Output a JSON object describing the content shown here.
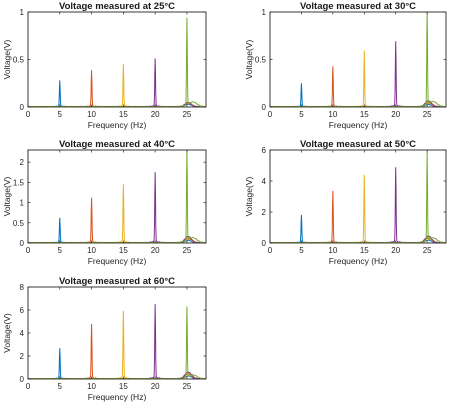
{
  "chart_data": [
    {
      "type": "line",
      "title": "Voltage measured at 25°C",
      "xlabel": "Frequency (Hz)",
      "ylabel": "Voltage(V)",
      "xlim": [
        0,
        28
      ],
      "ylim": [
        0,
        1
      ],
      "xticks": [
        "0",
        "5",
        "10",
        "15",
        "20",
        "25"
      ],
      "yticks": [
        "0",
        "0.5",
        "1"
      ],
      "series": [
        {
          "peak_hz": 5,
          "peak_v": 0.27,
          "color": "#0072BD"
        },
        {
          "peak_hz": 10,
          "peak_v": 0.38,
          "color": "#D95319"
        },
        {
          "peak_hz": 15,
          "peak_v": 0.44,
          "color": "#EDB120"
        },
        {
          "peak_hz": 20,
          "peak_v": 0.5,
          "color": "#7E2F8E"
        },
        {
          "peak_hz": 25,
          "peak_v": 0.91,
          "color": "#77AC30"
        }
      ]
    },
    {
      "type": "line",
      "title": "Voltage measured at 30°C",
      "xlabel": "Frequency (Hz)",
      "ylabel": "Voltage(V)",
      "xlim": [
        0,
        28
      ],
      "ylim": [
        0,
        1
      ],
      "xticks": [
        "0",
        "5",
        "10",
        "15",
        "20",
        "25"
      ],
      "yticks": [
        "0",
        "0.5",
        "1"
      ],
      "series": [
        {
          "peak_hz": 5,
          "peak_v": 0.24,
          "color": "#0072BD"
        },
        {
          "peak_hz": 10,
          "peak_v": 0.42,
          "color": "#D95319"
        },
        {
          "peak_hz": 15,
          "peak_v": 0.58,
          "color": "#EDB120"
        },
        {
          "peak_hz": 20,
          "peak_v": 0.68,
          "color": "#7E2F8E"
        },
        {
          "peak_hz": 25,
          "peak_v": 1.0,
          "color": "#77AC30"
        }
      ]
    },
    {
      "type": "line",
      "title": "Voltage measured at 40°C",
      "xlabel": "Frequency (Hz)",
      "ylabel": "Voltage(V)",
      "xlim": [
        0,
        28
      ],
      "ylim": [
        0,
        2.3
      ],
      "xticks": [
        "0",
        "5",
        "10",
        "15",
        "20",
        "25"
      ],
      "yticks": [
        "0",
        "0.5",
        "1",
        "1.5",
        "2"
      ],
      "series": [
        {
          "peak_hz": 5,
          "peak_v": 0.6,
          "color": "#0072BD"
        },
        {
          "peak_hz": 10,
          "peak_v": 1.1,
          "color": "#D95319"
        },
        {
          "peak_hz": 15,
          "peak_v": 1.42,
          "color": "#EDB120"
        },
        {
          "peak_hz": 20,
          "peak_v": 1.72,
          "color": "#7E2F8E"
        },
        {
          "peak_hz": 25,
          "peak_v": 2.3,
          "color": "#77AC30"
        }
      ]
    },
    {
      "type": "line",
      "title": "Voltage measured at 50°C",
      "xlabel": "Frequency (Hz)",
      "ylabel": "Voltage(V)",
      "xlim": [
        0,
        28
      ],
      "ylim": [
        0,
        6
      ],
      "xticks": [
        "0",
        "5",
        "10",
        "15",
        "20",
        "25"
      ],
      "yticks": [
        "0",
        "2",
        "4",
        "6"
      ],
      "series": [
        {
          "peak_hz": 5,
          "peak_v": 1.75,
          "color": "#0072BD"
        },
        {
          "peak_hz": 10,
          "peak_v": 3.3,
          "color": "#D95319"
        },
        {
          "peak_hz": 15,
          "peak_v": 4.3,
          "color": "#EDB120"
        },
        {
          "peak_hz": 20,
          "peak_v": 4.8,
          "color": "#7E2F8E"
        },
        {
          "peak_hz": 25,
          "peak_v": 5.7,
          "color": "#77AC30"
        }
      ]
    },
    {
      "type": "line",
      "title": "Voltage measured at 60°C",
      "xlabel": "Frequency (Hz)",
      "ylabel": "Voltage(V)",
      "xlim": [
        0,
        28
      ],
      "ylim": [
        0,
        8
      ],
      "xticks": [
        "0",
        "5",
        "10",
        "15",
        "20",
        "25"
      ],
      "yticks": [
        "0",
        "2",
        "4",
        "6",
        "8"
      ],
      "series": [
        {
          "peak_hz": 5,
          "peak_v": 2.6,
          "color": "#0072BD"
        },
        {
          "peak_hz": 10,
          "peak_v": 4.7,
          "color": "#D95319"
        },
        {
          "peak_hz": 15,
          "peak_v": 5.8,
          "color": "#EDB120"
        },
        {
          "peak_hz": 20,
          "peak_v": 6.4,
          "color": "#7E2F8E"
        },
        {
          "peak_hz": 25,
          "peak_v": 6.1,
          "color": "#77AC30"
        }
      ]
    }
  ]
}
